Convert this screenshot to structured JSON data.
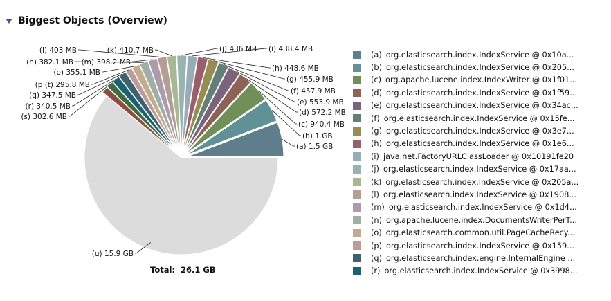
{
  "section": {
    "title": "Biggest Objects (Overview)",
    "collapse_icon": "triangle-down-icon"
  },
  "total": {
    "label": "Total:",
    "value": "26.1 GB"
  },
  "chart_data": {
    "type": "pie",
    "title": "Biggest Objects (Overview)",
    "unit": "MB",
    "slices": [
      {
        "key": "(a)",
        "name": "org.elasticsearch.index.IndexService @ 0x10a...",
        "label": "1.5 GB",
        "value": 1536,
        "color": "#5f7e8c"
      },
      {
        "key": "(b)",
        "name": "org.elasticsearch.index.IndexService @ 0x205...",
        "label": "1 GB",
        "value": 1024,
        "color": "#5f9196"
      },
      {
        "key": "(c)",
        "name": "org.apache.lucene.index.IndexWriter @ 0x1f01...",
        "label": "940.4 MB",
        "value": 940.4,
        "color": "#718f58"
      },
      {
        "key": "(d)",
        "name": "org.elasticsearch.index.IndexService @ 0x1f59...",
        "label": "572.2 MB",
        "value": 572.2,
        "color": "#8c6355"
      },
      {
        "key": "(e)",
        "name": "org.elasticsearch.index.IndexService @ 0x34ac...",
        "label": "553.9 MB",
        "value": 553.9,
        "color": "#7c637c"
      },
      {
        "key": "(f)",
        "name": "org.elasticsearch.index.IndexService @ 0x15fe...",
        "label": "457.9 MB",
        "value": 457.9,
        "color": "#647f76"
      },
      {
        "key": "(g)",
        "name": "org.elasticsearch.index.IndexService @ 0x3e7...",
        "label": "455.9 MB",
        "value": 455.9,
        "color": "#988c55"
      },
      {
        "key": "(h)",
        "name": "org.elasticsearch.index.IndexService @ 0x1e6...",
        "label": "448.6 MB",
        "value": 448.6,
        "color": "#9b5e6b"
      },
      {
        "key": "(i)",
        "name": "java.net.FactoryURLClassLoader @ 0x10191fe20",
        "label": "438.4 MB",
        "value": 438.4,
        "color": "#98acb8"
      },
      {
        "key": "(j)",
        "name": "org.elasticsearch.index.IndexService @ 0x17aa...",
        "label": "436 MB",
        "value": 436,
        "color": "#98b3b4"
      },
      {
        "key": "(k)",
        "name": "org.elasticsearch.index.IndexService @ 0x205a...",
        "label": "410.7 MB",
        "value": 410.7,
        "color": "#a8b794"
      },
      {
        "key": "(l)",
        "name": "org.elasticsearch.index.IndexService @ 0x1908...",
        "label": "403 MB",
        "value": 403,
        "color": "#b49d93"
      },
      {
        "key": "(m)",
        "name": "org.elasticsearch.index.IndexService @ 0x1d4...",
        "label": "398.2 MB",
        "value": 398.2,
        "color": "#ab9bab"
      },
      {
        "key": "(n)",
        "name": "org.apache.lucene.index.DocumentsWriterPerT...",
        "label": "382.1 MB",
        "value": 382.1,
        "color": "#a0aea8"
      },
      {
        "key": "(o)",
        "name": "org.elasticsearch.common.util.PageCacheRecy...",
        "label": "355.1 MB",
        "value": 355.1,
        "color": "#c1ac8c"
      },
      {
        "key": "(p)",
        "name": "org.elasticsearch.index.IndexService @ 0x159...",
        "label": "295.8 MB",
        "value": 295.8,
        "color": "#bc9b9b"
      },
      {
        "key": "(q)",
        "name": "org.elasticsearch.index.engine.InternalEngine ...",
        "label": "347.5 MB",
        "value": 347.5,
        "color": "#3f6070"
      },
      {
        "key": "(r)",
        "name": "org.elasticsearch.index.IndexService @ 0x3998...",
        "label": "340.5 MB",
        "value": 340.5,
        "color": "#1a6270"
      },
      {
        "key": "(s)",
        "name": "",
        "label": "302.6 MB",
        "value": 302.6,
        "color": "#3f6b3f"
      },
      {
        "key": "(t)",
        "name": "",
        "label": "",
        "value": 296,
        "color": "#8a4d3f"
      },
      {
        "key": "(u)",
        "name": "",
        "label": "15.9 GB",
        "value": 16282,
        "color": "#dcdcdc",
        "exploded": false
      }
    ],
    "callouts": [
      {
        "text": "(a)  1.5 GB",
        "slice": "(a)"
      },
      {
        "text": "(b)  1 GB",
        "slice": "(b)"
      },
      {
        "text": "(c)  940.4 MB",
        "slice": "(c)"
      },
      {
        "text": "(d)  572.2 MB",
        "slice": "(d)"
      },
      {
        "text": "(e)  553.9 MB",
        "slice": "(e)"
      },
      {
        "text": "(f)  457.9 MB",
        "slice": "(f)"
      },
      {
        "text": "(g)  455.9 MB",
        "slice": "(g)"
      },
      {
        "text": "(h)  448.6 MB",
        "slice": "(h)"
      },
      {
        "text": "(i)  438.4 MB",
        "slice": "(i)"
      },
      {
        "text": "(j)  436 MB",
        "slice": "(j)"
      },
      {
        "text": "(k)  410.7 MB",
        "slice": "(k)"
      },
      {
        "text": "(l)  403 MB",
        "slice": "(l)"
      },
      {
        "text": "(m)  398.2 MB",
        "slice": "(m)"
      },
      {
        "text": "(n)  382.1 MB",
        "slice": "(n)"
      },
      {
        "text": "(o)  355.1 MB",
        "slice": "(o)"
      },
      {
        "text": "(p (t)  295.8 MB",
        "slice": "(p)"
      },
      {
        "text": "(q)  347.5 MB",
        "slice": "(q)"
      },
      {
        "text": "(r)  340.5 MB",
        "slice": "(r)"
      },
      {
        "text": "(s)  302.6 MB",
        "slice": "(s)"
      },
      {
        "text": "(u)  15.9 GB",
        "slice": "(u)"
      }
    ],
    "legend_position": "right"
  }
}
